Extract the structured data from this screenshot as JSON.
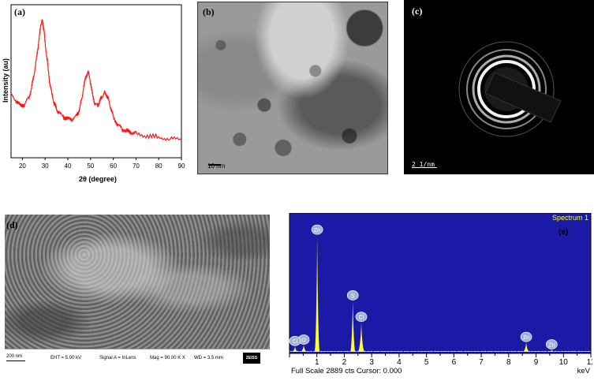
{
  "panel_a": {
    "label": "(a)",
    "chart_data": {
      "type": "line",
      "xlabel": "2θ (degree)",
      "ylabel": "Intensity (au)",
      "xlim": [
        15,
        90
      ],
      "xticks": [
        "20",
        "30",
        "40",
        "50",
        "60",
        "70",
        "80",
        "90"
      ],
      "series": [
        {
          "color": "#ff1a1a",
          "x": [
            15,
            17,
            19,
            21,
            23,
            24,
            25,
            26,
            27,
            28,
            28.5,
            29,
            29.5,
            30,
            31,
            32,
            33,
            34,
            35,
            36,
            38,
            40,
            42,
            44,
            45,
            46,
            47,
            48,
            49,
            50,
            51,
            52,
            53,
            54,
            55,
            56,
            57,
            58,
            59,
            60,
            62,
            64,
            66,
            68,
            70,
            75,
            80,
            85,
            90
          ],
          "y": [
            0.4,
            0.35,
            0.31,
            0.32,
            0.38,
            0.45,
            0.55,
            0.66,
            0.8,
            0.95,
            1.0,
            0.98,
            0.92,
            0.82,
            0.66,
            0.5,
            0.4,
            0.33,
            0.28,
            0.25,
            0.22,
            0.2,
            0.2,
            0.23,
            0.27,
            0.35,
            0.46,
            0.55,
            0.58,
            0.5,
            0.38,
            0.32,
            0.31,
            0.34,
            0.38,
            0.41,
            0.4,
            0.35,
            0.28,
            0.22,
            0.15,
            0.12,
            0.1,
            0.09,
            0.08,
            0.06,
            0.05,
            0.04,
            0.03
          ]
        }
      ]
    }
  },
  "panel_b": {
    "label": "(b)",
    "scale": "10 nm"
  },
  "panel_c": {
    "label": "(c)",
    "scale": "2 1/nm"
  },
  "panel_d": {
    "label": "(d)",
    "scale": "200 nm",
    "eht": "EHT = 5.00 kV",
    "signal": "Signal A = InLens",
    "mag": "Mag = 90.00 K X",
    "wd": "WD = 3.5 mm",
    "logo": "ZEISS"
  },
  "panel_e": {
    "label": "(e)",
    "spectrum_title": "Spectrum 1",
    "footer": "Full Scale 2889 cts Cursor: 0.000",
    "unit": "keV",
    "chart_data": {
      "type": "line",
      "xlabel": "keV",
      "xlim": [
        0,
        11
      ],
      "xticks": [
        "1",
        "2",
        "3",
        "4",
        "5",
        "6",
        "7",
        "8",
        "9",
        "10",
        "11"
      ],
      "peaks": [
        {
          "label": "Zn",
          "x": 1.01,
          "height": 0.87
        },
        {
          "label": "S",
          "x": 2.31,
          "height": 0.38
        },
        {
          "label": "Cl",
          "x": 2.62,
          "height": 0.22
        },
        {
          "label": "O",
          "x": 0.52,
          "height": 0.05
        },
        {
          "label": "Cl",
          "x": 0.2,
          "height": 0.04
        },
        {
          "label": "Zn",
          "x": 8.64,
          "height": 0.07
        },
        {
          "label": "Zn",
          "x": 9.57,
          "height": 0.015
        }
      ]
    }
  }
}
